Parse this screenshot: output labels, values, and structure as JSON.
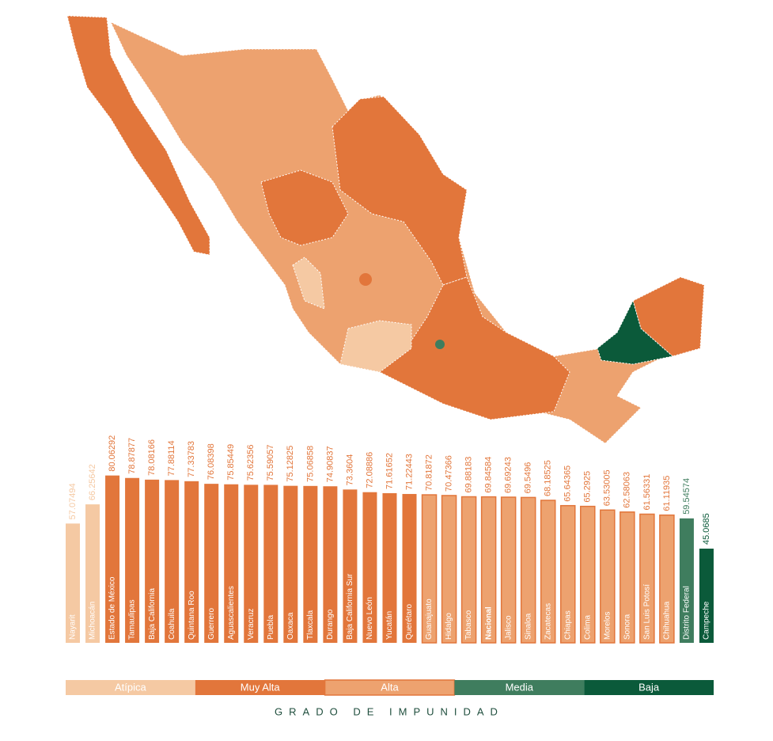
{
  "chart_data": {
    "type": "bar",
    "x_label": "GRADO DE IMPUNIDAD",
    "series": [
      {
        "name": "Atípica",
        "color": "#f5c9a3",
        "categories": [
          "Nayarit",
          "Michoacán"
        ],
        "values": [
          57.07494,
          66.25642
        ]
      },
      {
        "name": "Muy Alta",
        "color": "#e2763b",
        "categories": [
          "Estado de México",
          "Tamaulipas",
          "Baja California",
          "Coahuila",
          "Quintana Roo",
          "Guerrero",
          "Aguascalientes",
          "Veracruz",
          "Puebla",
          "Oaxaca",
          "Tlaxcala",
          "Durango",
          "Baja California Sur",
          "Nuevo León",
          "Yucatán",
          "Querétaro"
        ],
        "values": [
          80.06292,
          78.87877,
          78.08166,
          77.88114,
          77.33783,
          76.08398,
          75.85449,
          75.62356,
          75.59057,
          75.12825,
          75.06858,
          74.90837,
          73.3604,
          72.08886,
          71.61652,
          71.22443
        ]
      },
      {
        "name": "Alta",
        "color": "#eda26f",
        "border": "#e2763b",
        "bold_indices": [
          3
        ],
        "categories": [
          "Guanajuato",
          "Hidalgo",
          "Tabasco",
          "Nacional",
          "Jalisco",
          "Sinaloa",
          "Zacatecas",
          "Chiapas",
          "Colima",
          "Morelos",
          "Sonora",
          "San Luis Potosí",
          "Chihuahua"
        ],
        "values": [
          70.81872,
          70.47366,
          69.88183,
          69.84584,
          69.69243,
          69.5496,
          68.18525,
          65.64365,
          65.2925,
          63.53005,
          62.58063,
          61.56331,
          61.11935
        ]
      },
      {
        "name": "Media",
        "color": "#3f7d5e",
        "categories": [
          "Distrito Federal"
        ],
        "values": [
          59.54574
        ]
      },
      {
        "name": "Baja",
        "color": "#0b5a3a",
        "categories": [
          "Campeche"
        ],
        "values": [
          45.0685
        ]
      }
    ]
  }
}
